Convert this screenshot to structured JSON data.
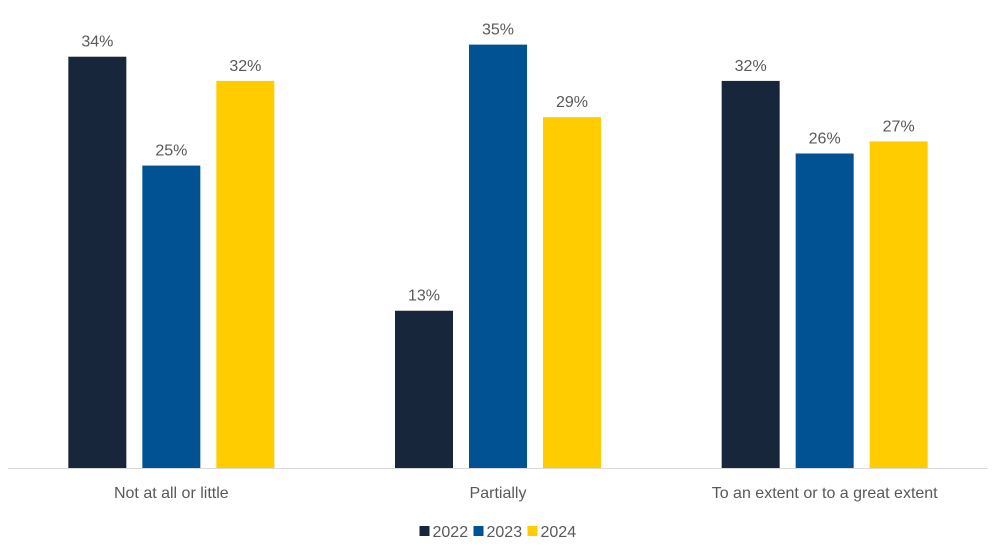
{
  "chart_data": {
    "type": "bar",
    "categories": [
      "Not at all or little",
      "Partially",
      "To an extent or to a great extent"
    ],
    "series": [
      {
        "name": "2022",
        "values": [
          34,
          13,
          32
        ],
        "color": "#17263a"
      },
      {
        "name": "2023",
        "values": [
          25,
          35,
          26
        ],
        "color": "#005293"
      },
      {
        "name": "2024",
        "values": [
          32,
          29,
          27
        ],
        "color": "#ffcc00"
      }
    ],
    "value_suffix": "%",
    "title": "",
    "xlabel": "",
    "ylabel": "",
    "ylim": [
      0,
      37.2
    ],
    "grid": false,
    "axis_line_color": "#d9d9d9",
    "label_color": "#595959",
    "legend_position": "bottom"
  }
}
